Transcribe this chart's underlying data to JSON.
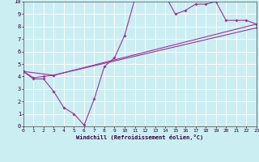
{
  "xlabel": "Windchill (Refroidissement éolien,°C)",
  "bg_color": "#cbeef3",
  "line_color": "#993399",
  "xlim": [
    0,
    23
  ],
  "ylim": [
    0,
    10
  ],
  "xticks": [
    0,
    1,
    2,
    3,
    4,
    5,
    6,
    7,
    8,
    9,
    10,
    11,
    12,
    13,
    14,
    15,
    16,
    17,
    18,
    19,
    20,
    21,
    22,
    23
  ],
  "yticks": [
    0,
    1,
    2,
    3,
    4,
    5,
    6,
    7,
    8,
    9,
    10
  ],
  "curve1_x": [
    0,
    1,
    2,
    3,
    4,
    5,
    6,
    7,
    8,
    9,
    10,
    11,
    12,
    13,
    14,
    15,
    16,
    17,
    18,
    19,
    20,
    21,
    22,
    23
  ],
  "curve1_y": [
    4.4,
    3.8,
    3.8,
    2.8,
    1.5,
    1.0,
    0.1,
    2.2,
    4.8,
    5.5,
    7.3,
    10.2,
    10.5,
    10.2,
    10.5,
    9.0,
    9.3,
    9.8,
    9.8,
    10.0,
    8.5,
    8.5,
    8.5,
    8.2
  ],
  "curve2_x": [
    0,
    1,
    2,
    3,
    23
  ],
  "curve2_y": [
    4.4,
    3.9,
    4.0,
    4.1,
    8.2
  ],
  "curve3_x": [
    0,
    3,
    23
  ],
  "curve3_y": [
    4.4,
    4.1,
    7.9
  ],
  "marker_size": 2.0,
  "line_width": 0.8,
  "tick_labelsize": 4.5,
  "xlabel_fontsize": 5.0
}
